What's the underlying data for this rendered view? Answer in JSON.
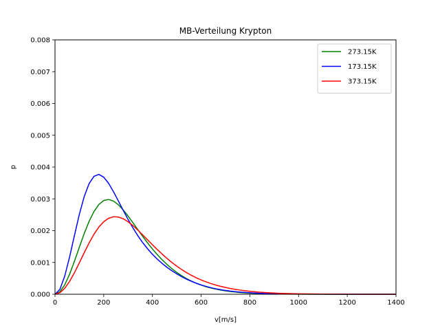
{
  "chart_data": {
    "type": "line",
    "title": "MB-Verteilung Krypton",
    "xlabel": "v[m/s]",
    "ylabel": "p",
    "xlim": [
      0,
      1400
    ],
    "ylim": [
      0,
      0.008
    ],
    "xticks": [
      "0",
      "200",
      "400",
      "600",
      "800",
      "1000",
      "1200",
      "1400"
    ],
    "yticks": [
      "0.000",
      "0.001",
      "0.002",
      "0.003",
      "0.004",
      "0.005",
      "0.006",
      "0.007",
      "0.008"
    ],
    "grid": false,
    "legend_position": "top-right",
    "x": [
      0,
      20,
      40,
      60,
      80,
      100,
      120,
      140,
      160,
      180,
      200,
      220,
      240,
      260,
      280,
      300,
      320,
      340,
      360,
      380,
      400,
      420,
      440,
      460,
      480,
      500,
      520,
      540,
      560,
      580,
      600,
      620,
      640,
      660,
      680,
      700,
      720,
      740,
      760,
      780,
      800,
      840,
      880,
      920,
      960,
      1000,
      1100,
      1200,
      1300,
      1400
    ],
    "series": [
      {
        "name": "273.15K",
        "color": "#008000",
        "values": [
          0,
          7.7e-05,
          0.000296,
          0.000631,
          0.001041,
          0.001482,
          0.001912,
          0.002293,
          0.002602,
          0.002823,
          0.002948,
          0.00298,
          0.002931,
          0.002816,
          0.002653,
          0.002459,
          0.002249,
          0.002033,
          0.00182,
          0.001616,
          0.001423,
          0.001245,
          0.001082,
          0.000935,
          0.000803,
          0.000686,
          0.000583,
          0.000492,
          0.000414,
          0.000346,
          0.000288,
          0.000238,
          0.000196,
          0.000161,
          0.000131,
          0.000106,
          8.6e-05,
          6.9e-05,
          5.5e-05,
          4.4e-05,
          3.5e-05,
          2.2e-05,
          1.3e-05,
          8e-06,
          5e-06,
          3e-06,
          1e-06,
          0,
          0,
          0
        ]
      },
      {
        "name": "173.15K",
        "color": "#0000ff",
        "values": [
          0,
          0.000152,
          0.000573,
          0.001175,
          0.001855,
          0.002515,
          0.003074,
          0.00348,
          0.00371,
          0.003769,
          0.003683,
          0.003489,
          0.003228,
          0.002936,
          0.002639,
          0.002353,
          0.002086,
          0.001843,
          0.001624,
          0.00143,
          0.001257,
          0.001104,
          0.000968,
          0.000846,
          0.000737,
          0.00064,
          0.000553,
          0.000475,
          0.000406,
          0.000346,
          0.000293,
          0.000247,
          0.000207,
          0.000173,
          0.000144,
          0.00012,
          9.9e-05,
          8.2e-05,
          6.8e-05,
          5.6e-05,
          4.6e-05,
          3.1e-05,
          2e-05,
          1.3e-05,
          9e-06,
          6e-06,
          2e-06,
          1e-06,
          0,
          0
        ]
      },
      {
        "name": "373.15K",
        "color": "#ff0000",
        "values": [
          0,
          4.8e-05,
          0.000188,
          0.000405,
          0.00068,
          0.000989,
          0.001308,
          0.001614,
          0.001887,
          0.002113,
          0.002281,
          0.002389,
          0.002437,
          0.002429,
          0.002374,
          0.002281,
          0.00216,
          0.002019,
          0.001868,
          0.001712,
          0.001557,
          0.001406,
          0.001262,
          0.001126,
          0.000999,
          0.000883,
          0.000777,
          0.000681,
          0.000595,
          0.000518,
          0.00045,
          0.00039,
          0.000337,
          0.00029,
          0.000249,
          0.000213,
          0.000182,
          0.000155,
          0.000131,
          0.000111,
          9.3e-05,
          6.5e-05,
          4.5e-05,
          3.1e-05,
          2.1e-05,
          1.4e-05,
          5e-06,
          2e-06,
          1e-06,
          0
        ]
      }
    ]
  }
}
